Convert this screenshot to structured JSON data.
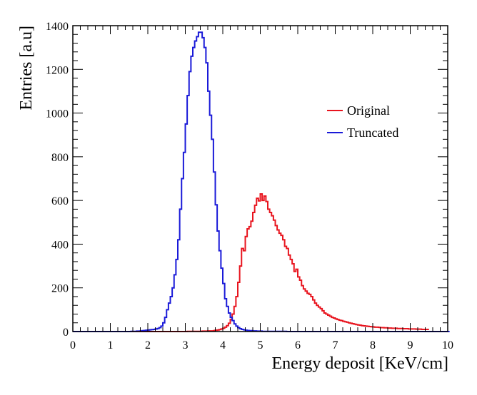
{
  "chart_data": {
    "type": "histogram",
    "title": "",
    "xlabel": "Energy deposit [KeV/cm]",
    "ylabel": "Entries [a.u]",
    "xlim": [
      0,
      10
    ],
    "ylim": [
      0,
      1400
    ],
    "x_ticks": [
      0,
      1,
      2,
      3,
      4,
      5,
      6,
      7,
      8,
      9,
      10
    ],
    "y_ticks": [
      0,
      200,
      400,
      600,
      800,
      1000,
      1200,
      1400
    ],
    "grid": false,
    "legend_position": "top-right",
    "bin_edges_start": 0,
    "bin_width": 0.05,
    "series": [
      {
        "name": "Original",
        "color": "#e8141e",
        "values": [
          0,
          0,
          0,
          0,
          0,
          0,
          0,
          0,
          0,
          0,
          0,
          0,
          0,
          0,
          0,
          0,
          0,
          0,
          0,
          0,
          0,
          0,
          0,
          0,
          0,
          0,
          0,
          0,
          0,
          0,
          0,
          0,
          0,
          0,
          0,
          0,
          0,
          0,
          0,
          0,
          0,
          0,
          0,
          0,
          0,
          0,
          0,
          0,
          0,
          0,
          0,
          0,
          0,
          0,
          0,
          0,
          0,
          0,
          0,
          0,
          0,
          1,
          1,
          1,
          1,
          1,
          1,
          1,
          1,
          2,
          2,
          2,
          3,
          3,
          3,
          4,
          6,
          7,
          9,
          12,
          15,
          20,
          27,
          38,
          55,
          80,
          115,
          160,
          225,
          300,
          380,
          370,
          435,
          470,
          480,
          505,
          545,
          578,
          610,
          598,
          630,
          600,
          620,
          595,
          560,
          545,
          530,
          510,
          485,
          465,
          450,
          440,
          420,
          390,
          380,
          350,
          330,
          310,
          275,
          285,
          250,
          235,
          210,
          195,
          185,
          175,
          170,
          160,
          145,
          130,
          120,
          112,
          105,
          95,
          85,
          80,
          75,
          70,
          65,
          62,
          58,
          55,
          52,
          50,
          47,
          45,
          43,
          40,
          38,
          36,
          34,
          32,
          30,
          29,
          27,
          26,
          25,
          24,
          23,
          22,
          21,
          20,
          20,
          19,
          18,
          18,
          17,
          17,
          16,
          16,
          15,
          15,
          15,
          14,
          14,
          14,
          13,
          13,
          13,
          12,
          12,
          12,
          12,
          11,
          11,
          11,
          10,
          10,
          10,
          10
        ]
      },
      {
        "name": "Truncated",
        "color": "#1a1ad8",
        "values": [
          0,
          0,
          0,
          0,
          0,
          0,
          0,
          0,
          0,
          0,
          0,
          0,
          0,
          0,
          0,
          0,
          0,
          0,
          0,
          0,
          0,
          0,
          0,
          0,
          0,
          0,
          0,
          0,
          0,
          0,
          0,
          1,
          1,
          1,
          2,
          2,
          3,
          4,
          5,
          6,
          7,
          8,
          9,
          10,
          12,
          14,
          18,
          25,
          40,
          65,
          100,
          130,
          160,
          200,
          260,
          330,
          420,
          560,
          700,
          820,
          950,
          1080,
          1190,
          1260,
          1300,
          1330,
          1350,
          1370,
          1370,
          1345,
          1300,
          1230,
          1100,
          990,
          880,
          730,
          580,
          460,
          370,
          290,
          220,
          150,
          115,
          85,
          65,
          50,
          35,
          25,
          18,
          13,
          10,
          8,
          6,
          5,
          4,
          4,
          3,
          3,
          2,
          2,
          2,
          1,
          1,
          1,
          1,
          1,
          1,
          1,
          1,
          1,
          1,
          1,
          1,
          1,
          0,
          0,
          0,
          0,
          0,
          0,
          0,
          0,
          0,
          0,
          0,
          0,
          0,
          0,
          0,
          0,
          0,
          0,
          0,
          0,
          0,
          0,
          0,
          0,
          0,
          0,
          0,
          0,
          0,
          0,
          0,
          0,
          0,
          0,
          0,
          0,
          0,
          0,
          0,
          0,
          0,
          0,
          0,
          0,
          0,
          0,
          0,
          0,
          0,
          0,
          0,
          0,
          0,
          0,
          0,
          0,
          0,
          0,
          0,
          0,
          0,
          0,
          0,
          0,
          0,
          0,
          0,
          0,
          0,
          0,
          0,
          0,
          0,
          0,
          0,
          0,
          0,
          0,
          0,
          0,
          0,
          0,
          0,
          0,
          0,
          0,
          0
        ]
      }
    ]
  }
}
